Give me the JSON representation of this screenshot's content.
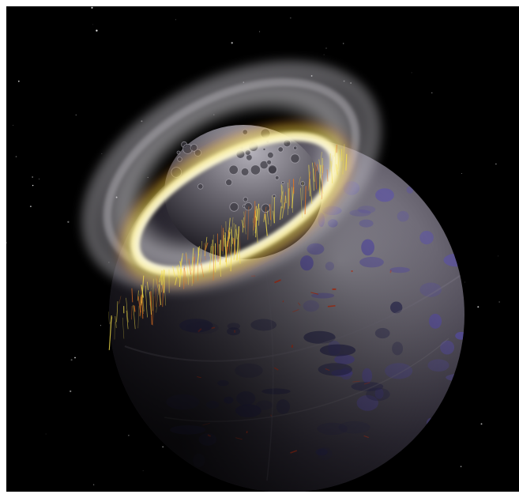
{
  "image": {
    "subject": "planetary-collision-artwork",
    "colors": {
      "background": "#000000",
      "border": "#ffffff",
      "planet_base": "#3a3642",
      "planet_light": "#8e8b94",
      "impactor": "#5a5760",
      "glow_core": "#fffbe0",
      "glow_yellow": "#f5e04a",
      "glow_orange": "#e9731f",
      "ring_dust": "#d8d6dc",
      "bruise_purple": "#5a4fb0",
      "lava_red": "#d83a1a"
    }
  }
}
